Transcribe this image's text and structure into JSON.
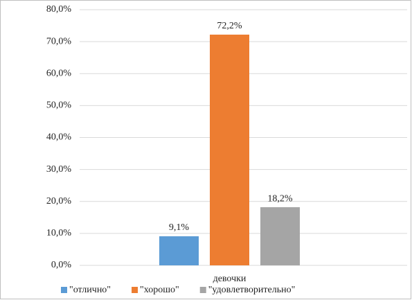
{
  "chart_data": {
    "type": "bar",
    "categories": [
      "девочки"
    ],
    "series": [
      {
        "name": "\"отлично\"",
        "color": "#5b9bd5",
        "values": [
          9.1
        ],
        "value_labels": [
          "9,1%"
        ]
      },
      {
        "name": "\"хорошо\"",
        "color": "#ed7d31",
        "values": [
          72.2
        ],
        "value_labels": [
          "72,2%"
        ]
      },
      {
        "name": "\"удовлетворительно\"",
        "color": "#a5a5a5",
        "values": [
          18.2
        ],
        "value_labels": [
          "18,2%"
        ]
      }
    ],
    "ylim": [
      0,
      80
    ],
    "yticks": [
      {
        "value": 0,
        "label": "0,0%"
      },
      {
        "value": 10,
        "label": "10,0%"
      },
      {
        "value": 20,
        "label": "20,0%"
      },
      {
        "value": 30,
        "label": "30,0%"
      },
      {
        "value": 40,
        "label": "40,0%"
      },
      {
        "value": 50,
        "label": "50,0%"
      },
      {
        "value": 60,
        "label": "60,0%"
      },
      {
        "value": 70,
        "label": "70,0%"
      },
      {
        "value": 80,
        "label": "80,0%"
      }
    ],
    "grid": true,
    "legend": "bottom"
  }
}
